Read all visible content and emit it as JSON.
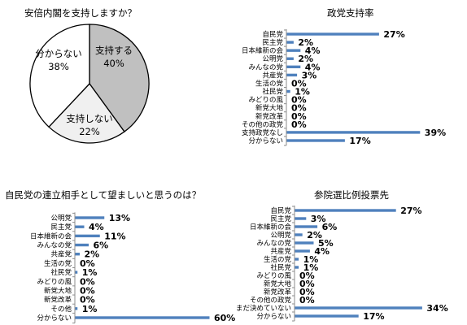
{
  "pie": {
    "title": "安倍内閣を支持しますか？",
    "slices": [
      {
        "label": "支持する",
        "pct": "40%",
        "value": 40,
        "color": "#c0c0c0"
      },
      {
        "label": "支持しない",
        "pct": "22%",
        "value": 22,
        "color": "#f0f0f0"
      },
      {
        "label": "分からない",
        "pct": "38%",
        "value": 38,
        "color": "#ffffff"
      }
    ]
  },
  "chart_data": [
    {
      "type": "pie",
      "title": "安倍内閣を支持しますか？",
      "categories": [
        "支持する",
        "支持しない",
        "分からない"
      ],
      "values": [
        40,
        22,
        38
      ]
    },
    {
      "type": "bar",
      "title": "政党支持率",
      "categories": [
        "自民党",
        "民主党",
        "日本維新の会",
        "公明党",
        "みんなの党",
        "共産党",
        "生活の党",
        "社民党",
        "みどりの風",
        "新党大地",
        "新党改革",
        "その他の政党",
        "支持政党なし",
        "分からない"
      ],
      "values": [
        27,
        2,
        4,
        2,
        4,
        3,
        0,
        1,
        0,
        0,
        0,
        0,
        39,
        17
      ],
      "value_labels": [
        "27%",
        "2%",
        "4%",
        "2%",
        "4%",
        "3%",
        "0%",
        "1%",
        "0%",
        "0%",
        "0%",
        "0%",
        "39%",
        "17%"
      ],
      "color": "#4f81bd"
    },
    {
      "type": "bar",
      "title": "自民党の連立相手として望ましいと思うのは？",
      "categories": [
        "公明党",
        "民主党",
        "日本維新の会",
        "みんなの党",
        "共産党",
        "生活の党",
        "社民党",
        "みどりの風",
        "新党大地",
        "新党改革",
        "その他",
        "分からない"
      ],
      "values": [
        13,
        4,
        11,
        6,
        2,
        0,
        1,
        0,
        0,
        0,
        1,
        60
      ],
      "value_labels": [
        "13%",
        "4%",
        "11%",
        "6%",
        "2%",
        "0%",
        "1%",
        "0%",
        "0%",
        "0%",
        "1%",
        "60%"
      ],
      "color": "#4f81bd"
    },
    {
      "type": "bar",
      "title": "参院選比例投票先",
      "categories": [
        "自民党",
        "民主党",
        "日本維新の会",
        "公明党",
        "みんなの党",
        "共産党",
        "生活の党",
        "社民党",
        "みどりの風",
        "新党大地",
        "新党改革",
        "その他の政党",
        "まだ決めていない",
        "分からない"
      ],
      "values": [
        27,
        3,
        6,
        2,
        5,
        4,
        1,
        1,
        0,
        0,
        0,
        0,
        34,
        17
      ],
      "value_labels": [
        "27%",
        "3%",
        "6%",
        "2%",
        "5%",
        "4%",
        "1%",
        "1%",
        "0%",
        "0%",
        "0%",
        "0%",
        "34%",
        "17%"
      ],
      "color": "#4f81bd"
    }
  ]
}
